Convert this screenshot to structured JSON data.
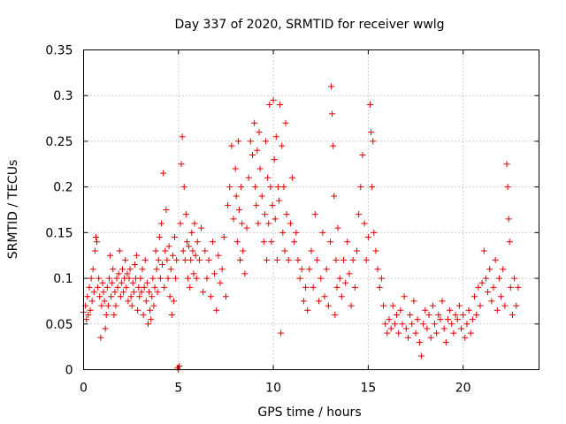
{
  "chart_data": {
    "type": "scatter",
    "title": "Day 337 of 2020, SRMTID for receiver wwlg",
    "xlabel": "GPS time / hours",
    "ylabel": "SRMTID / TECUs",
    "xlim": [
      0,
      24
    ],
    "ylim": [
      0,
      0.35
    ],
    "xticks": [
      "0",
      "5",
      "10",
      "15",
      "20"
    ],
    "yticks": [
      "0",
      "0.05",
      "0.1",
      "0.15",
      "0.2",
      "0.25",
      "0.3",
      "0.35"
    ],
    "grid": true,
    "marker": "+",
    "color": "#e00000",
    "series": [
      {
        "name": "SRMTID",
        "points": [
          [
            0.0,
            0.063
          ],
          [
            0.1,
            0.07
          ],
          [
            0.15,
            0.055
          ],
          [
            0.2,
            0.08
          ],
          [
            0.25,
            0.06
          ],
          [
            0.3,
            0.09
          ],
          [
            0.35,
            0.065
          ],
          [
            0.4,
            0.1
          ],
          [
            0.45,
            0.075
          ],
          [
            0.5,
            0.11
          ],
          [
            0.55,
            0.085
          ],
          [
            0.6,
            0.13
          ],
          [
            0.65,
            0.145
          ],
          [
            0.7,
            0.14
          ],
          [
            0.75,
            0.09
          ],
          [
            0.8,
            0.1
          ],
          [
            0.85,
            0.08
          ],
          [
            0.9,
            0.035
          ],
          [
            0.95,
            0.07
          ],
          [
            1.0,
            0.095
          ],
          [
            1.05,
            0.085
          ],
          [
            1.1,
            0.075
          ],
          [
            1.15,
            0.045
          ],
          [
            1.2,
            0.06
          ],
          [
            1.25,
            0.09
          ],
          [
            1.3,
            0.07
          ],
          [
            1.35,
            0.1
          ],
          [
            1.4,
            0.125
          ],
          [
            1.45,
            0.08
          ],
          [
            1.5,
            0.095
          ],
          [
            1.55,
            0.11
          ],
          [
            1.6,
            0.06
          ],
          [
            1.65,
            0.085
          ],
          [
            1.7,
            0.07
          ],
          [
            1.75,
            0.1
          ],
          [
            1.8,
            0.09
          ],
          [
            1.85,
            0.105
          ],
          [
            1.9,
            0.13
          ],
          [
            1.95,
            0.08
          ],
          [
            2.0,
            0.095
          ],
          [
            2.05,
            0.11
          ],
          [
            2.1,
            0.085
          ],
          [
            2.15,
            0.1
          ],
          [
            2.2,
            0.12
          ],
          [
            2.25,
            0.09
          ],
          [
            2.3,
            0.105
          ],
          [
            2.35,
            0.075
          ],
          [
            2.4,
            0.1
          ],
          [
            2.45,
            0.11
          ],
          [
            2.5,
            0.08
          ],
          [
            2.55,
            0.07
          ],
          [
            2.6,
            0.095
          ],
          [
            2.65,
            0.085
          ],
          [
            2.7,
            0.115
          ],
          [
            2.75,
            0.1
          ],
          [
            2.8,
            0.125
          ],
          [
            2.85,
            0.065
          ],
          [
            2.9,
            0.09
          ],
          [
            2.95,
            0.08
          ],
          [
            3.0,
            0.1
          ],
          [
            3.05,
            0.085
          ],
          [
            3.1,
            0.11
          ],
          [
            3.15,
            0.06
          ],
          [
            3.2,
            0.09
          ],
          [
            3.25,
            0.12
          ],
          [
            3.3,
            0.075
          ],
          [
            3.35,
            0.095
          ],
          [
            3.4,
            0.05
          ],
          [
            3.45,
            0.085
          ],
          [
            3.5,
            0.065
          ],
          [
            3.55,
            0.055
          ],
          [
            3.6,
            0.08
          ],
          [
            3.65,
            0.1
          ],
          [
            3.7,
            0.07
          ],
          [
            3.75,
            0.09
          ],
          [
            3.8,
            0.13
          ],
          [
            3.85,
            0.11
          ],
          [
            3.9,
            0.085
          ],
          [
            3.95,
            0.12
          ],
          [
            4.0,
            0.145
          ],
          [
            4.05,
            0.1
          ],
          [
            4.1,
            0.16
          ],
          [
            4.15,
            0.115
          ],
          [
            4.2,
            0.215
          ],
          [
            4.25,
            0.09
          ],
          [
            4.3,
            0.13
          ],
          [
            4.35,
            0.175
          ],
          [
            4.4,
            0.12
          ],
          [
            4.45,
            0.1
          ],
          [
            4.5,
            0.135
          ],
          [
            4.55,
            0.08
          ],
          [
            4.6,
            0.11
          ],
          [
            4.65,
            0.06
          ],
          [
            4.7,
            0.125
          ],
          [
            4.75,
            0.075
          ],
          [
            4.8,
            0.145
          ],
          [
            4.85,
            0.1
          ],
          [
            4.9,
            0.12
          ],
          [
            4.95,
            0.002
          ],
          [
            5.0,
            0.0
          ],
          [
            5.05,
            0.004
          ],
          [
            5.1,
            0.16
          ],
          [
            5.15,
            0.225
          ],
          [
            5.2,
            0.255
          ],
          [
            5.25,
            0.13
          ],
          [
            5.3,
            0.2
          ],
          [
            5.35,
            0.12
          ],
          [
            5.4,
            0.17
          ],
          [
            5.45,
            0.14
          ],
          [
            5.5,
            0.1
          ],
          [
            5.55,
            0.135
          ],
          [
            5.6,
            0.09
          ],
          [
            5.65,
            0.12
          ],
          [
            5.7,
            0.15
          ],
          [
            5.75,
            0.13
          ],
          [
            5.8,
            0.105
          ],
          [
            5.85,
            0.16
          ],
          [
            5.9,
            0.125
          ],
          [
            5.95,
            0.1
          ],
          [
            6.0,
            0.14
          ],
          [
            6.1,
            0.12
          ],
          [
            6.2,
            0.155
          ],
          [
            6.3,
            0.085
          ],
          [
            6.4,
            0.13
          ],
          [
            6.5,
            0.1
          ],
          [
            6.6,
            0.12
          ],
          [
            6.7,
            0.08
          ],
          [
            6.8,
            0.14
          ],
          [
            6.9,
            0.105
          ],
          [
            7.0,
            0.065
          ],
          [
            7.1,
            0.125
          ],
          [
            7.2,
            0.095
          ],
          [
            7.3,
            0.11
          ],
          [
            7.4,
            0.145
          ],
          [
            7.5,
            0.08
          ],
          [
            7.6,
            0.18
          ],
          [
            7.7,
            0.2
          ],
          [
            7.8,
            0.245
          ],
          [
            7.9,
            0.165
          ],
          [
            8.0,
            0.22
          ],
          [
            8.05,
            0.19
          ],
          [
            8.1,
            0.14
          ],
          [
            8.15,
            0.25
          ],
          [
            8.2,
            0.175
          ],
          [
            8.25,
            0.12
          ],
          [
            8.3,
            0.2
          ],
          [
            8.35,
            0.16
          ],
          [
            8.4,
            0.13
          ],
          [
            8.5,
            0.105
          ],
          [
            8.6,
            0.155
          ],
          [
            8.7,
            0.21
          ],
          [
            8.8,
            0.25
          ],
          [
            8.9,
            0.235
          ],
          [
            9.0,
            0.27
          ],
          [
            9.05,
            0.2
          ],
          [
            9.1,
            0.18
          ],
          [
            9.15,
            0.24
          ],
          [
            9.2,
            0.16
          ],
          [
            9.25,
            0.26
          ],
          [
            9.3,
            0.22
          ],
          [
            9.4,
            0.19
          ],
          [
            9.5,
            0.14
          ],
          [
            9.55,
            0.17
          ],
          [
            9.6,
            0.25
          ],
          [
            9.65,
            0.12
          ],
          [
            9.7,
            0.21
          ],
          [
            9.75,
            0.16
          ],
          [
            9.8,
            0.29
          ],
          [
            9.85,
            0.2
          ],
          [
            9.9,
            0.14
          ],
          [
            9.95,
            0.18
          ],
          [
            10.0,
            0.295
          ],
          [
            10.05,
            0.23
          ],
          [
            10.1,
            0.165
          ],
          [
            10.15,
            0.255
          ],
          [
            10.2,
            0.12
          ],
          [
            10.25,
            0.2
          ],
          [
            10.3,
            0.185
          ],
          [
            10.35,
            0.29
          ],
          [
            10.4,
            0.04
          ],
          [
            10.45,
            0.245
          ],
          [
            10.5,
            0.15
          ],
          [
            10.55,
            0.2
          ],
          [
            10.6,
            0.13
          ],
          [
            10.65,
            0.27
          ],
          [
            10.7,
            0.17
          ],
          [
            10.8,
            0.12
          ],
          [
            10.9,
            0.16
          ],
          [
            11.0,
            0.21
          ],
          [
            11.1,
            0.14
          ],
          [
            11.2,
            0.15
          ],
          [
            11.3,
            0.12
          ],
          [
            11.4,
            0.1
          ],
          [
            11.5,
            0.11
          ],
          [
            11.6,
            0.075
          ],
          [
            11.7,
            0.09
          ],
          [
            11.8,
            0.065
          ],
          [
            11.9,
            0.11
          ],
          [
            12.0,
            0.13
          ],
          [
            12.1,
            0.09
          ],
          [
            12.2,
            0.17
          ],
          [
            12.3,
            0.12
          ],
          [
            12.4,
            0.075
          ],
          [
            12.5,
            0.1
          ],
          [
            12.6,
            0.15
          ],
          [
            12.7,
            0.08
          ],
          [
            12.8,
            0.11
          ],
          [
            12.9,
            0.07
          ],
          [
            13.0,
            0.14
          ],
          [
            13.05,
            0.31
          ],
          [
            13.1,
            0.28
          ],
          [
            13.15,
            0.245
          ],
          [
            13.2,
            0.19
          ],
          [
            13.25,
            0.06
          ],
          [
            13.3,
            0.12
          ],
          [
            13.35,
            0.09
          ],
          [
            13.4,
            0.155
          ],
          [
            13.5,
            0.1
          ],
          [
            13.6,
            0.08
          ],
          [
            13.7,
            0.12
          ],
          [
            13.8,
            0.095
          ],
          [
            13.9,
            0.14
          ],
          [
            14.0,
            0.105
          ],
          [
            14.1,
            0.07
          ],
          [
            14.2,
            0.12
          ],
          [
            14.3,
            0.09
          ],
          [
            14.4,
            0.13
          ],
          [
            14.5,
            0.17
          ],
          [
            14.6,
            0.2
          ],
          [
            14.7,
            0.235
          ],
          [
            14.8,
            0.16
          ],
          [
            14.9,
            0.12
          ],
          [
            15.0,
            0.145
          ],
          [
            15.1,
            0.29
          ],
          [
            15.15,
            0.26
          ],
          [
            15.2,
            0.2
          ],
          [
            15.25,
            0.25
          ],
          [
            15.3,
            0.15
          ],
          [
            15.4,
            0.13
          ],
          [
            15.5,
            0.11
          ],
          [
            15.6,
            0.09
          ],
          [
            15.7,
            0.1
          ],
          [
            15.8,
            0.07
          ],
          [
            15.9,
            0.05
          ],
          [
            16.0,
            0.04
          ],
          [
            16.1,
            0.055
          ],
          [
            16.2,
            0.045
          ],
          [
            16.3,
            0.07
          ],
          [
            16.4,
            0.05
          ],
          [
            16.5,
            0.06
          ],
          [
            16.6,
            0.04
          ],
          [
            16.7,
            0.065
          ],
          [
            16.8,
            0.05
          ],
          [
            16.9,
            0.08
          ],
          [
            17.0,
            0.045
          ],
          [
            17.1,
            0.035
          ],
          [
            17.2,
            0.06
          ],
          [
            17.3,
            0.05
          ],
          [
            17.4,
            0.075
          ],
          [
            17.5,
            0.04
          ],
          [
            17.6,
            0.055
          ],
          [
            17.7,
            0.03
          ],
          [
            17.8,
            0.015
          ],
          [
            17.9,
            0.05
          ],
          [
            18.0,
            0.065
          ],
          [
            18.1,
            0.045
          ],
          [
            18.2,
            0.06
          ],
          [
            18.3,
            0.035
          ],
          [
            18.4,
            0.07
          ],
          [
            18.5,
            0.05
          ],
          [
            18.6,
            0.04
          ],
          [
            18.7,
            0.06
          ],
          [
            18.8,
            0.055
          ],
          [
            18.9,
            0.075
          ],
          [
            19.0,
            0.045
          ],
          [
            19.1,
            0.03
          ],
          [
            19.2,
            0.055
          ],
          [
            19.3,
            0.065
          ],
          [
            19.4,
            0.05
          ],
          [
            19.5,
            0.04
          ],
          [
            19.6,
            0.06
          ],
          [
            19.7,
            0.055
          ],
          [
            19.8,
            0.07
          ],
          [
            19.9,
            0.045
          ],
          [
            20.0,
            0.06
          ],
          [
            20.1,
            0.035
          ],
          [
            20.2,
            0.05
          ],
          [
            20.3,
            0.065
          ],
          [
            20.4,
            0.04
          ],
          [
            20.5,
            0.055
          ],
          [
            20.6,
            0.08
          ],
          [
            20.7,
            0.06
          ],
          [
            20.8,
            0.09
          ],
          [
            20.9,
            0.07
          ],
          [
            21.0,
            0.095
          ],
          [
            21.1,
            0.13
          ],
          [
            21.2,
            0.1
          ],
          [
            21.3,
            0.085
          ],
          [
            21.4,
            0.11
          ],
          [
            21.5,
            0.075
          ],
          [
            21.6,
            0.09
          ],
          [
            21.7,
            0.12
          ],
          [
            21.8,
            0.065
          ],
          [
            21.9,
            0.1
          ],
          [
            22.0,
            0.08
          ],
          [
            22.1,
            0.11
          ],
          [
            22.2,
            0.07
          ],
          [
            22.3,
            0.225
          ],
          [
            22.35,
            0.2
          ],
          [
            22.4,
            0.165
          ],
          [
            22.45,
            0.14
          ],
          [
            22.5,
            0.09
          ],
          [
            22.6,
            0.06
          ],
          [
            22.7,
            0.1
          ],
          [
            22.8,
            0.07
          ],
          [
            22.9,
            0.09
          ]
        ]
      }
    ]
  }
}
